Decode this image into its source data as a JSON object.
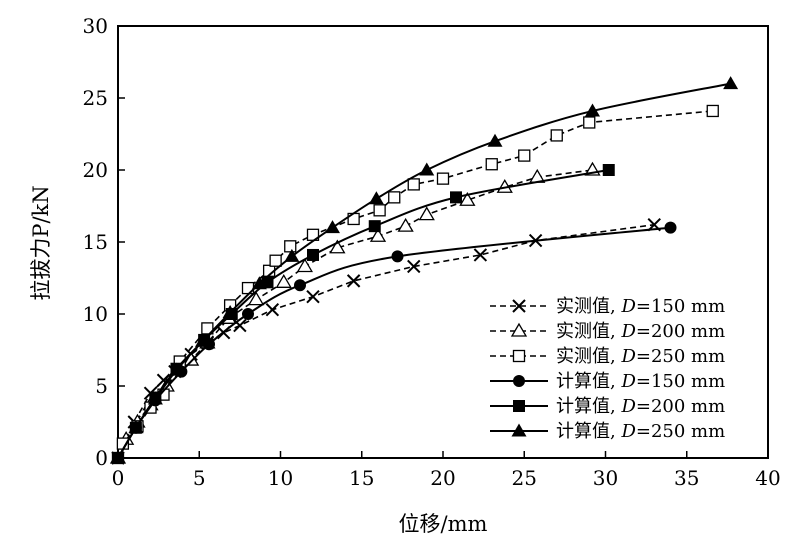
{
  "chart_data": {
    "type": "line",
    "xlabel": "位移/mm",
    "ylabel": "拉拔力P/kN",
    "xlim": [
      0,
      40
    ],
    "ylim": [
      0,
      30
    ],
    "xticks": [
      "0",
      "5",
      "10",
      "15",
      "20",
      "25",
      "30",
      "35",
      "40"
    ],
    "yticks": [
      "0",
      "5",
      "10",
      "15",
      "20",
      "25",
      "30"
    ],
    "grid": false,
    "legend_position": "bottom-right",
    "series": [
      {
        "name": "实测值, D=150 mm",
        "line": "dashed",
        "marker": "x",
        "points": [
          [
            0,
            0
          ],
          [
            1,
            2.5
          ],
          [
            2,
            4.5
          ],
          [
            2.8,
            5.4
          ],
          [
            3.5,
            6
          ],
          [
            4.5,
            7.2
          ],
          [
            5.5,
            8
          ],
          [
            6.5,
            8.7
          ],
          [
            7.5,
            9.2
          ],
          [
            9.5,
            10.3
          ],
          [
            12,
            11.2
          ],
          [
            14.5,
            12.3
          ],
          [
            18.2,
            13.3
          ],
          [
            22.3,
            14.1
          ],
          [
            25.7,
            15.1
          ],
          [
            33,
            16.2
          ]
        ]
      },
      {
        "name": "实测值, D=200 mm",
        "line": "dashed",
        "marker": "triangle-open",
        "points": [
          [
            0,
            0
          ],
          [
            0.5,
            1.3
          ],
          [
            1.2,
            2.5
          ],
          [
            2,
            3.7
          ],
          [
            3,
            5
          ],
          [
            4.5,
            6.8
          ],
          [
            5.5,
            8
          ],
          [
            6.8,
            9.7
          ],
          [
            8.5,
            11
          ],
          [
            10.2,
            12.2
          ],
          [
            11.5,
            13.3
          ],
          [
            13.5,
            14.6
          ],
          [
            16,
            15.4
          ],
          [
            17.7,
            16.1
          ],
          [
            19,
            16.9
          ],
          [
            21.5,
            17.9
          ],
          [
            23.8,
            18.8
          ],
          [
            25.8,
            19.5
          ],
          [
            29.2,
            20
          ]
        ]
      },
      {
        "name": "实测值, D=250 mm",
        "line": "dashed",
        "marker": "square-open",
        "points": [
          [
            0,
            0
          ],
          [
            0.3,
            1
          ],
          [
            1.2,
            2.2
          ],
          [
            2,
            3.5
          ],
          [
            2.8,
            4.4
          ],
          [
            3.8,
            6.7
          ],
          [
            5.5,
            9
          ],
          [
            6.9,
            10.6
          ],
          [
            8,
            11.8
          ],
          [
            9.3,
            13
          ],
          [
            9.7,
            13.7
          ],
          [
            10.6,
            14.7
          ],
          [
            12,
            15.5
          ],
          [
            14.5,
            16.6
          ],
          [
            16.1,
            17.2
          ],
          [
            17,
            18.1
          ],
          [
            18.2,
            19
          ],
          [
            20,
            19.4
          ],
          [
            23,
            20.4
          ],
          [
            25,
            21
          ],
          [
            27,
            22.4
          ],
          [
            29,
            23.3
          ],
          [
            36.6,
            24.1
          ]
        ]
      },
      {
        "name": "计算值, D=150 mm",
        "line": "solid",
        "marker": "circle",
        "points": [
          [
            0,
            0
          ],
          [
            1.1,
            2.1
          ],
          [
            2.3,
            4
          ],
          [
            3.9,
            6
          ],
          [
            5.6,
            7.9
          ],
          [
            8,
            10
          ],
          [
            11.2,
            12
          ],
          [
            17.2,
            14
          ],
          [
            34,
            16
          ]
        ]
      },
      {
        "name": "计算值, D=200 mm",
        "line": "solid",
        "marker": "square",
        "points": [
          [
            0,
            0
          ],
          [
            1.1,
            2.1
          ],
          [
            2.3,
            4.2
          ],
          [
            3.6,
            6.2
          ],
          [
            5.3,
            8.2
          ],
          [
            7,
            10
          ],
          [
            9.2,
            12.2
          ],
          [
            12,
            14.1
          ],
          [
            15.8,
            16.1
          ],
          [
            20.8,
            18.1
          ],
          [
            30.2,
            20
          ]
        ]
      },
      {
        "name": "计算值, D=250 mm",
        "line": "solid",
        "marker": "triangle",
        "points": [
          [
            0,
            0
          ],
          [
            1.1,
            2.1
          ],
          [
            2.3,
            4.1
          ],
          [
            3.6,
            6.1
          ],
          [
            5.2,
            8.1
          ],
          [
            6.9,
            10.1
          ],
          [
            8.7,
            12.1
          ],
          [
            10.7,
            14
          ],
          [
            13.2,
            16
          ],
          [
            15.9,
            18
          ],
          [
            19,
            20
          ],
          [
            23.2,
            22
          ],
          [
            29.2,
            24.1
          ],
          [
            37.7,
            26
          ]
        ]
      }
    ]
  }
}
